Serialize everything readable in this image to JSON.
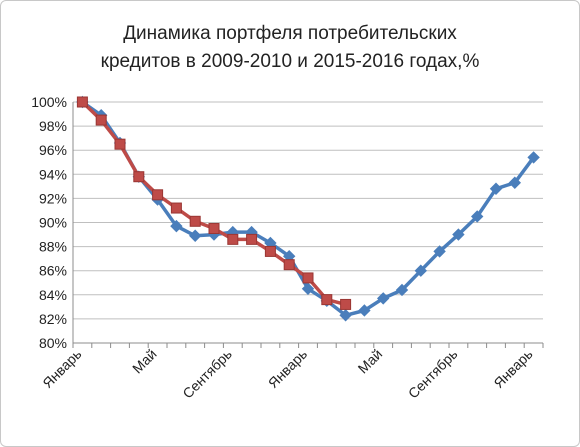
{
  "chart_data": {
    "type": "line",
    "title_lines": [
      "Динамика портфеля потребительских",
      "кредитов в 2009-2010 и 2015-2016 годах,%"
    ],
    "ylim": [
      80,
      100
    ],
    "y_ticks": [
      "80%",
      "82%",
      "84%",
      "86%",
      "88%",
      "90%",
      "92%",
      "94%",
      "96%",
      "98%",
      "100%"
    ],
    "x_tick_labels": [
      {
        "index": 0,
        "label": "Январь"
      },
      {
        "index": 4,
        "label": "Май"
      },
      {
        "index": 8,
        "label": "Сентябрь"
      },
      {
        "index": 12,
        "label": "Январь"
      },
      {
        "index": 16,
        "label": "Май"
      },
      {
        "index": 20,
        "label": "Сентябрь"
      },
      {
        "index": 24,
        "label": "Январь"
      }
    ],
    "grid": "horizontal",
    "series": [
      {
        "color": "#4a7ebb",
        "marker": "diamond",
        "values": [
          100.0,
          98.9,
          96.6,
          93.8,
          91.9,
          89.7,
          88.9,
          89.0,
          89.2,
          89.2,
          88.3,
          87.2,
          84.5,
          83.5,
          82.3,
          82.7,
          83.7,
          84.4,
          86.0,
          87.6,
          89.0,
          90.5,
          92.8,
          93.3,
          95.4
        ]
      },
      {
        "color": "#be4b48",
        "marker": "square",
        "values": [
          100.0,
          98.5,
          96.5,
          93.8,
          92.3,
          91.2,
          90.1,
          89.5,
          88.6,
          88.6,
          87.6,
          86.5,
          85.4,
          83.6,
          83.2
        ]
      }
    ]
  }
}
